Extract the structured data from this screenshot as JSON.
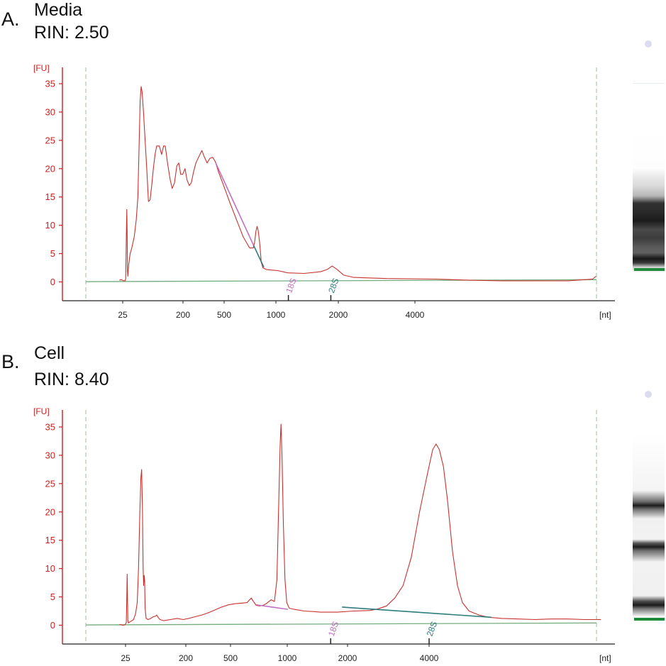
{
  "colors": {
    "trace": "#c8322e",
    "y_axis": "#cc2020",
    "baseline": "#74ad7e",
    "marker_line": "#9bbf9b",
    "s18": "#c16fc4",
    "s28": "#2e7c7c",
    "ladder_marker": "#1e8a3a"
  },
  "chart_data": [
    {
      "type": "line",
      "panel_letter": "A.",
      "title": "Media",
      "subtitle": "RIN: 2.50",
      "ylabel": "[FU]",
      "xlabel": "[nt]",
      "ylim": [
        -3,
        38
      ],
      "y_ticks": [
        "0",
        "5",
        "10",
        "15",
        "20",
        "25",
        "30",
        "35"
      ],
      "x_ticks": [
        "25",
        "200",
        "500",
        "1000",
        "2000",
        "4000"
      ],
      "x_tick_pos": [
        25,
        200,
        500,
        1000,
        2000,
        4000
      ],
      "markers": {
        "s18": {
          "label": "18S",
          "x": 1200
        },
        "s28": {
          "label": "28S",
          "x": 1880
        }
      },
      "series": [
        {
          "points": [
            [
              -20,
              0.3
            ],
            [
              -10,
              0.4
            ],
            [
              0,
              0.3
            ],
            [
              5,
              0.2
            ],
            [
              14,
              0.2
            ],
            [
              18,
              0.5
            ],
            [
              22,
              8
            ],
            [
              25,
              12.8
            ],
            [
              27,
              8
            ],
            [
              29,
              2
            ],
            [
              31,
              1
            ],
            [
              36,
              3
            ],
            [
              45,
              5
            ],
            [
              55,
              6
            ],
            [
              70,
              8
            ],
            [
              82,
              11
            ],
            [
              92,
              15
            ],
            [
              100,
              25
            ],
            [
              106,
              32
            ],
            [
              112,
              34.5
            ],
            [
              118,
              33.5
            ],
            [
              126,
              30
            ],
            [
              136,
              25
            ],
            [
              146,
              20
            ],
            [
              156,
              14.2
            ],
            [
              166,
              14.5
            ],
            [
              176,
              17
            ],
            [
              186,
              20
            ],
            [
              196,
              22.5
            ],
            [
              206,
              24
            ],
            [
              222,
              24
            ],
            [
              236,
              22.5
            ],
            [
              248,
              24
            ],
            [
              258,
              24
            ],
            [
              272,
              21
            ],
            [
              288,
              18
            ],
            [
              300,
              16.5
            ],
            [
              314,
              17.5
            ],
            [
              328,
              20.5
            ],
            [
              340,
              21
            ],
            [
              352,
              19
            ],
            [
              364,
              19
            ],
            [
              378,
              20
            ],
            [
              390,
              18
            ],
            [
              404,
              17
            ],
            [
              416,
              17.5
            ],
            [
              430,
              19.5
            ],
            [
              444,
              21
            ],
            [
              460,
              22
            ],
            [
              480,
              23.2
            ],
            [
              496,
              22
            ],
            [
              512,
              21
            ],
            [
              528,
              21.8
            ],
            [
              546,
              22
            ],
            [
              562,
              21.2
            ],
            [
              580,
              19.5
            ],
            [
              612,
              17
            ],
            [
              650,
              14
            ],
            [
              690,
              11
            ],
            [
              730,
              8
            ],
            [
              770,
              6
            ],
            [
              792,
              6
            ],
            [
              800,
              7
            ],
            [
              808,
              9
            ],
            [
              815,
              9.8
            ],
            [
              822,
              9
            ],
            [
              830,
              7
            ],
            [
              836,
              5
            ],
            [
              840,
              3.5
            ],
            [
              850,
              2.5
            ],
            [
              870,
              2.2
            ],
            [
              900,
              2.1
            ],
            [
              940,
              2.0
            ],
            [
              1000,
              1.6
            ],
            [
              1100,
              1.5
            ],
            [
              1200,
              1.8
            ],
            [
              1240,
              2.2
            ],
            [
              1270,
              2.8
            ],
            [
              1300,
              2.2
            ],
            [
              1340,
              1.2
            ],
            [
              1400,
              0.8
            ],
            [
              1600,
              0.6
            ],
            [
              1900,
              0.5
            ],
            [
              2100,
              0.3
            ],
            [
              2300,
              0.2
            ],
            [
              2700,
              0.2
            ],
            [
              2800,
              0.4
            ],
            [
              2850,
              0.5
            ],
            [
              2870,
              1.0
            ]
          ]
        }
      ],
      "segments": [
        {
          "kind": "s18",
          "from": [
            564,
            21
          ],
          "to": [
            793,
            6.5
          ]
        },
        {
          "kind": "s28",
          "from": [
            793,
            6.5
          ],
          "to": [
            856,
            2.6
          ]
        }
      ]
    },
    {
      "type": "line",
      "panel_letter": "B.",
      "title": "Cell",
      "subtitle": "RIN: 8.40",
      "ylabel": "[FU]",
      "xlabel": "[nt]",
      "ylim": [
        -3,
        38
      ],
      "y_ticks": [
        "0",
        "5",
        "10",
        "15",
        "20",
        "25",
        "30",
        "35"
      ],
      "x_ticks": [
        "25",
        "200",
        "500",
        "1000",
        "2000",
        "4000"
      ],
      "x_tick_pos": [
        25,
        200,
        500,
        1000,
        2000,
        4000
      ],
      "markers": {
        "s18": {
          "label": "18S",
          "x": 1720
        },
        "s28": {
          "label": "28S",
          "x": 4040
        }
      },
      "series": [
        {
          "points": [
            [
              -20,
              0.1
            ],
            [
              -10,
              0.1
            ],
            [
              0,
              0
            ],
            [
              5,
              0
            ],
            [
              15,
              0.1
            ],
            [
              22,
              0.5
            ],
            [
              25,
              5
            ],
            [
              27,
              9
            ],
            [
              29,
              6
            ],
            [
              31,
              1
            ],
            [
              34,
              0.4
            ],
            [
              44,
              0.6
            ],
            [
              56,
              0.8
            ],
            [
              66,
              1
            ],
            [
              78,
              2
            ],
            [
              88,
              4
            ],
            [
              96,
              10
            ],
            [
              104,
              20
            ],
            [
              110,
              26
            ],
            [
              115,
              27.5
            ],
            [
              120,
              20
            ],
            [
              124,
              10
            ],
            [
              127,
              7
            ],
            [
              130,
              8.8
            ],
            [
              133,
              8
            ],
            [
              136,
              3
            ],
            [
              142,
              1.2
            ],
            [
              154,
              1
            ],
            [
              170,
              1.2
            ],
            [
              186,
              1.5
            ],
            [
              200,
              1.6
            ],
            [
              206,
              1.8
            ],
            [
              214,
              1.4
            ],
            [
              226,
              1
            ],
            [
              250,
              0.8
            ],
            [
              290,
              1
            ],
            [
              330,
              1.2
            ],
            [
              366,
              1
            ],
            [
              400,
              1.2
            ],
            [
              440,
              1.5
            ],
            [
              480,
              1.8
            ],
            [
              520,
              2.2
            ],
            [
              560,
              2.7
            ],
            [
              600,
              3.2
            ],
            [
              640,
              3.6
            ],
            [
              680,
              3.8
            ],
            [
              720,
              3.9
            ],
            [
              754,
              4.0
            ],
            [
              770,
              4.5
            ],
            [
              780,
              4.8
            ],
            [
              790,
              4.3
            ],
            [
              810,
              3.5
            ],
            [
              830,
              3.4
            ],
            [
              850,
              3.5
            ],
            [
              870,
              3.8
            ],
            [
              900,
              4.5
            ],
            [
              920,
              4.2
            ],
            [
              935,
              8
            ],
            [
              945,
              20
            ],
            [
              955,
              32
            ],
            [
              960,
              35.5
            ],
            [
              966,
              30
            ],
            [
              974,
              18
            ],
            [
              984,
              8
            ],
            [
              995,
              4
            ],
            [
              1010,
              3
            ],
            [
              1040,
              2.8
            ],
            [
              1100,
              2.5
            ],
            [
              1160,
              2.4
            ],
            [
              1200,
              2.3
            ],
            [
              1300,
              2.3
            ],
            [
              1400,
              2.5
            ],
            [
              1500,
              2.6
            ],
            [
              1550,
              2.9
            ],
            [
              1600,
              3.4
            ],
            [
              1650,
              4.8
            ],
            [
              1700,
              7
            ],
            [
              1750,
              12
            ],
            [
              1800,
              20
            ],
            [
              1850,
              27
            ],
            [
              1880,
              31
            ],
            [
              1900,
              32
            ],
            [
              1920,
              31
            ],
            [
              1945,
              28
            ],
            [
              1970,
              22
            ],
            [
              2000,
              13
            ],
            [
              2030,
              7
            ],
            [
              2060,
              4
            ],
            [
              2100,
              2.5
            ],
            [
              2160,
              1.8
            ],
            [
              2220,
              1.4
            ],
            [
              2300,
              1.2
            ],
            [
              2400,
              1.1
            ],
            [
              2500,
              1.0
            ],
            [
              2600,
              1.1
            ],
            [
              2700,
              1.1
            ],
            [
              2800,
              1.0
            ],
            [
              2900,
              1.0
            ]
          ]
        }
      ],
      "segments": [
        {
          "kind": "s18",
          "from": [
            810,
            3.6
          ],
          "to": [
            1002,
            2.8
          ]
        },
        {
          "kind": "s28",
          "from": [
            1330,
            3.2
          ],
          "to": [
            2235,
            1.4
          ]
        }
      ]
    }
  ]
}
